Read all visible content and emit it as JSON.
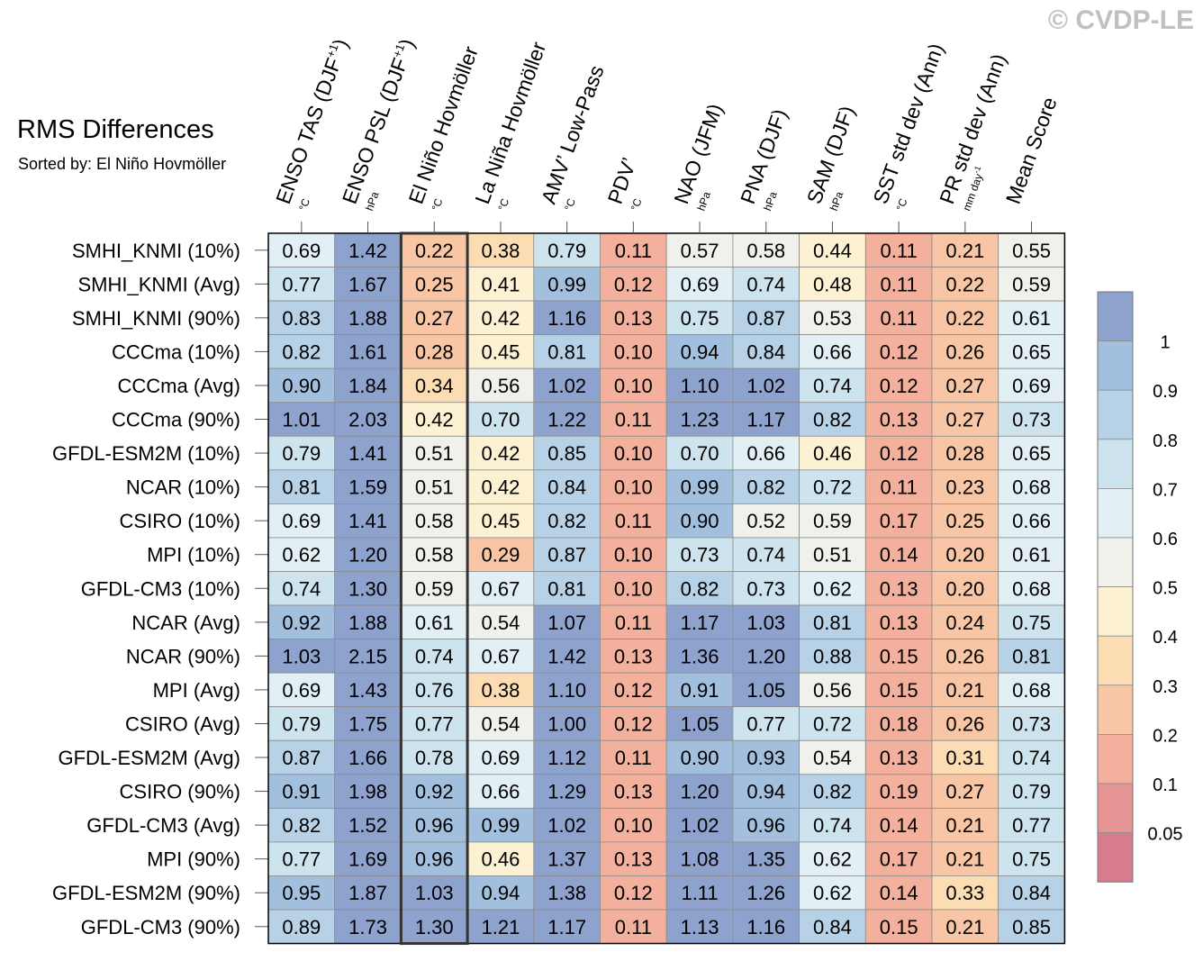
{
  "chart_data": {
    "type": "heatmap",
    "title": "RMS Differences",
    "subtitle": "Sorted by: El Niño Hovmöller",
    "watermark": "© CVDP-LE",
    "columns": [
      {
        "label": "ENSO TAS (DJF",
        "sup": "+1",
        "close": ")",
        "unit": "°C"
      },
      {
        "label": "ENSO PSL (DJF",
        "sup": "+1",
        "close": ")",
        "unit": "hPa"
      },
      {
        "label": "El Niño Hovmöller",
        "unit": "°C"
      },
      {
        "label": "La Niña Hovmöller",
        "unit": "°C"
      },
      {
        "label": "AMV’ Low-Pass",
        "unit": "°C"
      },
      {
        "label": "PDV’",
        "unit": "°C"
      },
      {
        "label": "NAO (JFM)",
        "unit": "hPa"
      },
      {
        "label": "PNA (DJF)",
        "unit": "hPa"
      },
      {
        "label": "SAM (DJF)",
        "unit": "hPa"
      },
      {
        "label": "SST std dev (Ann)",
        "unit": "°C"
      },
      {
        "label": "PR std dev (Ann)",
        "unit": "mm day",
        "unit_sup": "-1"
      },
      {
        "label": "Mean Score",
        "unit": ""
      }
    ],
    "highlighted_column": 2,
    "rows": [
      {
        "label": "SMHI_KNMI (10%)",
        "values": [
          "0.69",
          "1.42",
          "0.22",
          "0.38",
          "0.79",
          "0.11",
          "0.57",
          "0.58",
          "0.44",
          "0.11",
          "0.21",
          "0.55"
        ]
      },
      {
        "label": "SMHI_KNMI (Avg)",
        "values": [
          "0.77",
          "1.67",
          "0.25",
          "0.41",
          "0.99",
          "0.12",
          "0.69",
          "0.74",
          "0.48",
          "0.11",
          "0.22",
          "0.59"
        ]
      },
      {
        "label": "SMHI_KNMI (90%)",
        "values": [
          "0.83",
          "1.88",
          "0.27",
          "0.42",
          "1.16",
          "0.13",
          "0.75",
          "0.87",
          "0.53",
          "0.11",
          "0.22",
          "0.61"
        ]
      },
      {
        "label": "CCCma (10%)",
        "values": [
          "0.82",
          "1.61",
          "0.28",
          "0.45",
          "0.81",
          "0.10",
          "0.94",
          "0.84",
          "0.66",
          "0.12",
          "0.26",
          "0.65"
        ]
      },
      {
        "label": "CCCma (Avg)",
        "values": [
          "0.90",
          "1.84",
          "0.34",
          "0.56",
          "1.02",
          "0.10",
          "1.10",
          "1.02",
          "0.74",
          "0.12",
          "0.27",
          "0.69"
        ]
      },
      {
        "label": "CCCma (90%)",
        "values": [
          "1.01",
          "2.03",
          "0.42",
          "0.70",
          "1.22",
          "0.11",
          "1.23",
          "1.17",
          "0.82",
          "0.13",
          "0.27",
          "0.73"
        ]
      },
      {
        "label": "GFDL-ESM2M (10%)",
        "values": [
          "0.79",
          "1.41",
          "0.51",
          "0.42",
          "0.85",
          "0.10",
          "0.70",
          "0.66",
          "0.46",
          "0.12",
          "0.28",
          "0.65"
        ]
      },
      {
        "label": "NCAR (10%)",
        "values": [
          "0.81",
          "1.59",
          "0.51",
          "0.42",
          "0.84",
          "0.10",
          "0.99",
          "0.82",
          "0.72",
          "0.11",
          "0.23",
          "0.68"
        ]
      },
      {
        "label": "CSIRO (10%)",
        "values": [
          "0.69",
          "1.41",
          "0.58",
          "0.45",
          "0.82",
          "0.11",
          "0.90",
          "0.52",
          "0.59",
          "0.17",
          "0.25",
          "0.66"
        ]
      },
      {
        "label": "MPI (10%)",
        "values": [
          "0.62",
          "1.20",
          "0.58",
          "0.29",
          "0.87",
          "0.10",
          "0.73",
          "0.74",
          "0.51",
          "0.14",
          "0.20",
          "0.61"
        ]
      },
      {
        "label": "GFDL-CM3 (10%)",
        "values": [
          "0.74",
          "1.30",
          "0.59",
          "0.67",
          "0.81",
          "0.10",
          "0.82",
          "0.73",
          "0.62",
          "0.13",
          "0.20",
          "0.68"
        ]
      },
      {
        "label": "NCAR (Avg)",
        "values": [
          "0.92",
          "1.88",
          "0.61",
          "0.54",
          "1.07",
          "0.11",
          "1.17",
          "1.03",
          "0.81",
          "0.13",
          "0.24",
          "0.75"
        ]
      },
      {
        "label": "NCAR (90%)",
        "values": [
          "1.03",
          "2.15",
          "0.74",
          "0.67",
          "1.42",
          "0.13",
          "1.36",
          "1.20",
          "0.88",
          "0.15",
          "0.26",
          "0.81"
        ]
      },
      {
        "label": "MPI (Avg)",
        "values": [
          "0.69",
          "1.43",
          "0.76",
          "0.38",
          "1.10",
          "0.12",
          "0.91",
          "1.05",
          "0.56",
          "0.15",
          "0.21",
          "0.68"
        ]
      },
      {
        "label": "CSIRO (Avg)",
        "values": [
          "0.79",
          "1.75",
          "0.77",
          "0.54",
          "1.00",
          "0.12",
          "1.05",
          "0.77",
          "0.72",
          "0.18",
          "0.26",
          "0.73"
        ]
      },
      {
        "label": "GFDL-ESM2M (Avg)",
        "values": [
          "0.87",
          "1.66",
          "0.78",
          "0.69",
          "1.12",
          "0.11",
          "0.90",
          "0.93",
          "0.54",
          "0.13",
          "0.31",
          "0.74"
        ]
      },
      {
        "label": "CSIRO (90%)",
        "values": [
          "0.91",
          "1.98",
          "0.92",
          "0.66",
          "1.29",
          "0.13",
          "1.20",
          "0.94",
          "0.82",
          "0.19",
          "0.27",
          "0.79"
        ]
      },
      {
        "label": "GFDL-CM3 (Avg)",
        "values": [
          "0.82",
          "1.52",
          "0.96",
          "0.99",
          "1.02",
          "0.10",
          "1.02",
          "0.96",
          "0.74",
          "0.14",
          "0.21",
          "0.77"
        ]
      },
      {
        "label": "MPI (90%)",
        "values": [
          "0.77",
          "1.69",
          "0.96",
          "0.46",
          "1.37",
          "0.13",
          "1.08",
          "1.35",
          "0.62",
          "0.17",
          "0.21",
          "0.75"
        ]
      },
      {
        "label": "GFDL-ESM2M (90%)",
        "values": [
          "0.95",
          "1.87",
          "1.03",
          "0.94",
          "1.38",
          "0.12",
          "1.11",
          "1.26",
          "0.62",
          "0.14",
          "0.33",
          "0.84"
        ]
      },
      {
        "label": "GFDL-CM3 (90%)",
        "values": [
          "0.89",
          "1.73",
          "1.30",
          "1.21",
          "1.17",
          "0.11",
          "1.13",
          "1.16",
          "0.84",
          "0.15",
          "0.21",
          "0.85"
        ]
      }
    ],
    "colorbar": {
      "tick_labels": [
        "1",
        "0.9",
        "0.8",
        "0.7",
        "0.6",
        "0.5",
        "0.4",
        "0.3",
        "0.2",
        "0.1",
        "0.05"
      ],
      "levels": [
        0.05,
        0.1,
        0.2,
        0.3,
        0.4,
        0.5,
        0.6,
        0.7,
        0.8,
        0.9,
        1.0
      ],
      "colors": [
        "#d77c8d",
        "#e69394",
        "#f2b09d",
        "#f8c6a4",
        "#fbdcb3",
        "#fcf1d2",
        "#f0f1ea",
        "#e2eff4",
        "#cde3ee",
        "#b7d2e6",
        "#a2bfdd",
        "#8ea2ce"
      ]
    },
    "grid_color": "#8c8c8c"
  }
}
